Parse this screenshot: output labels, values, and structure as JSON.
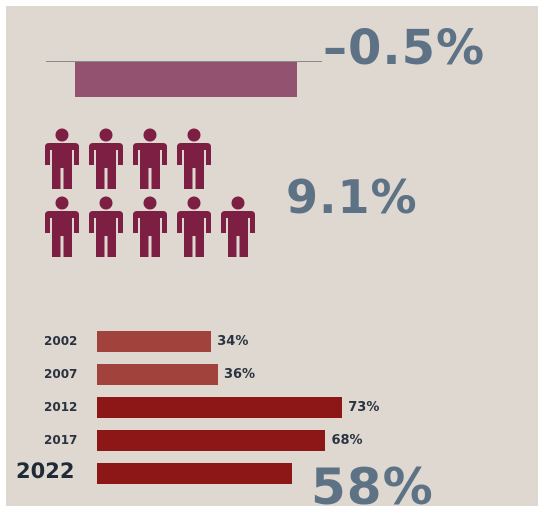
{
  "colors": {
    "panel_bg": "#ded8d0",
    "negative_bar": "#93526f",
    "person_icon": "#7d1f42",
    "bar_early": "#a2423c",
    "bar_late": "#8d1616",
    "headline_number": "#5e7286"
  },
  "top": {
    "value_label": "–0.5%"
  },
  "people": {
    "value_label": "9.1%",
    "icon": "person-icon",
    "rows": [
      4,
      5
    ]
  },
  "chart_data": {
    "type": "bar",
    "orientation": "horizontal",
    "categories": [
      "2002",
      "2007",
      "2012",
      "2017",
      "2022"
    ],
    "values": [
      34,
      36,
      73,
      68,
      58
    ],
    "value_labels": [
      "34%",
      "36%",
      "73%",
      "68%",
      "58%"
    ],
    "xlim": [
      0,
      100
    ],
    "grid": false
  }
}
